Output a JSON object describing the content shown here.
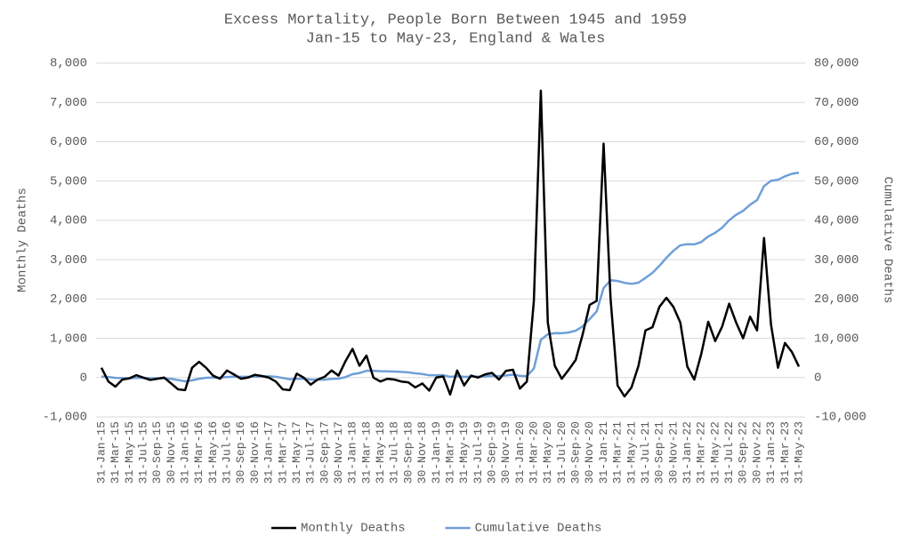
{
  "chart_data": {
    "type": "line",
    "title": "Excess Mortality, People Born Between 1945 and 1959",
    "subtitle": "Jan-15 to May-23, England & Wales",
    "y_label": "Monthly Deaths",
    "y2_label": "Cumulative Deaths",
    "legend": "bottom",
    "grid": true,
    "categories": [
      "31-Jan-15",
      null,
      "31-Mar-15",
      null,
      "31-May-15",
      null,
      "31-Jul-15",
      null,
      "30-Sep-15",
      null,
      "30-Nov-15",
      null,
      "31-Jan-16",
      null,
      "31-Mar-16",
      null,
      "31-May-16",
      null,
      "31-Jul-16",
      null,
      "30-Sep-16",
      null,
      "30-Nov-16",
      null,
      "31-Jan-17",
      null,
      "31-Mar-17",
      null,
      "31-May-17",
      null,
      "31-Jul-17",
      null,
      "30-Sep-17",
      null,
      "30-Nov-17",
      null,
      "31-Jan-18",
      null,
      "31-Mar-18",
      null,
      "31-May-18",
      null,
      "31-Jul-18",
      null,
      "30-Sep-18",
      null,
      "30-Nov-18",
      null,
      "31-Jan-19",
      null,
      "31-Mar-19",
      null,
      "31-May-19",
      null,
      "31-Jul-19",
      null,
      "30-Sep-19",
      null,
      "30-Nov-19",
      null,
      "31-Jan-20",
      null,
      "31-Mar-20",
      null,
      "31-May-20",
      null,
      "31-Jul-20",
      null,
      "30-Sep-20",
      null,
      "30-Nov-20",
      null,
      "31-Jan-21",
      null,
      "31-Mar-21",
      null,
      "31-May-21",
      null,
      "31-Jul-21",
      null,
      "30-Sep-21",
      null,
      "30-Nov-21",
      null,
      "31-Jan-22",
      null,
      "31-Mar-22",
      null,
      "31-May-22",
      null,
      "31-Jul-22",
      null,
      "30-Sep-22",
      null,
      "30-Nov-22",
      null,
      "31-Jan-23",
      null,
      "31-Mar-23",
      null,
      "31-May-23"
    ],
    "series": [
      {
        "name": "Monthly Deaths",
        "color": "#000000",
        "values": [
          250,
          -100,
          -230,
          -50,
          -20,
          60,
          0,
          -60,
          -30,
          0,
          -150,
          -300,
          -320,
          250,
          400,
          250,
          50,
          -30,
          180,
          80,
          -30,
          0,
          70,
          40,
          0,
          -100,
          -300,
          -320,
          100,
          0,
          -180,
          -50,
          20,
          180,
          50,
          420,
          730,
          300,
          560,
          0,
          -100,
          -30,
          -50,
          -100,
          -120,
          -250,
          -150,
          -330,
          0,
          30,
          -430,
          180,
          -200,
          50,
          0,
          80,
          120,
          -50,
          170,
          200,
          -280,
          -100,
          1950,
          7300,
          1400,
          300,
          -30,
          200,
          450,
          1100,
          1850,
          1950,
          5950,
          2000,
          -200,
          -480,
          -250,
          300,
          1200,
          1280,
          1800,
          2030,
          1800,
          1400,
          280,
          -50,
          600,
          1420,
          930,
          1300,
          1880,
          1400,
          1000,
          1550,
          1200,
          3550,
          1350,
          250,
          880,
          650,
          280
        ]
      },
      {
        "name": "Cumulative Deaths",
        "color": "#6f9fd8",
        "axis": "y2",
        "values": [
          250,
          150,
          -80,
          -130,
          -150,
          -90,
          -90,
          -150,
          -180,
          -180,
          -330,
          -630,
          -950,
          -700,
          -300,
          -50,
          0,
          -30,
          150,
          230,
          200,
          200,
          270,
          310,
          310,
          210,
          -90,
          -410,
          -310,
          -310,
          -490,
          -540,
          -520,
          -340,
          -290,
          130,
          860,
          1160,
          1720,
          1720,
          1620,
          1590,
          1540,
          1440,
          1320,
          1070,
          920,
          590,
          590,
          620,
          190,
          370,
          170,
          220,
          220,
          300,
          420,
          370,
          540,
          740,
          460,
          360,
          2310,
          9610,
          11010,
          11310,
          11280,
          11480,
          11930,
          13030,
          14880,
          16830,
          22780,
          24780,
          24580,
          24100,
          23850,
          24150,
          25350,
          26630,
          28430,
          30460,
          32260,
          33660,
          33940,
          33890,
          34490,
          35910,
          36840,
          38140,
          40020,
          41420,
          42420,
          43970,
          45170,
          48720,
          50070,
          50320,
          51200,
          51850,
          52130
        ]
      }
    ],
    "ylim": [
      -1000,
      8000
    ],
    "yticks": [
      {
        "value": -1000,
        "label": "-1,000"
      },
      0,
      {
        "value": 1000,
        "label": "1,000"
      },
      {
        "value": 2000,
        "label": "2,000"
      },
      {
        "value": 3000,
        "label": "3,000"
      },
      {
        "value": 4000,
        "label": "4,000"
      },
      {
        "value": 5000,
        "label": "5,000"
      },
      {
        "value": 6000,
        "label": "6,000"
      },
      {
        "value": 7000,
        "label": "7,000"
      },
      {
        "value": 8000,
        "label": "8,000"
      }
    ],
    "y2lim": [
      -10000,
      80000
    ],
    "y2ticks": [
      {
        "value": -10000,
        "label": "-10,000"
      },
      0,
      {
        "value": 10000,
        "label": "10,000"
      },
      {
        "value": 20000,
        "label": "20,000"
      },
      {
        "value": 30000,
        "label": "30,000"
      },
      {
        "value": 40000,
        "label": "40,000"
      },
      {
        "value": 50000,
        "label": "50,000"
      },
      {
        "value": 60000,
        "label": "60,000"
      },
      {
        "value": 70000,
        "label": "70,000"
      },
      {
        "value": 80000,
        "label": "80,000"
      }
    ]
  }
}
